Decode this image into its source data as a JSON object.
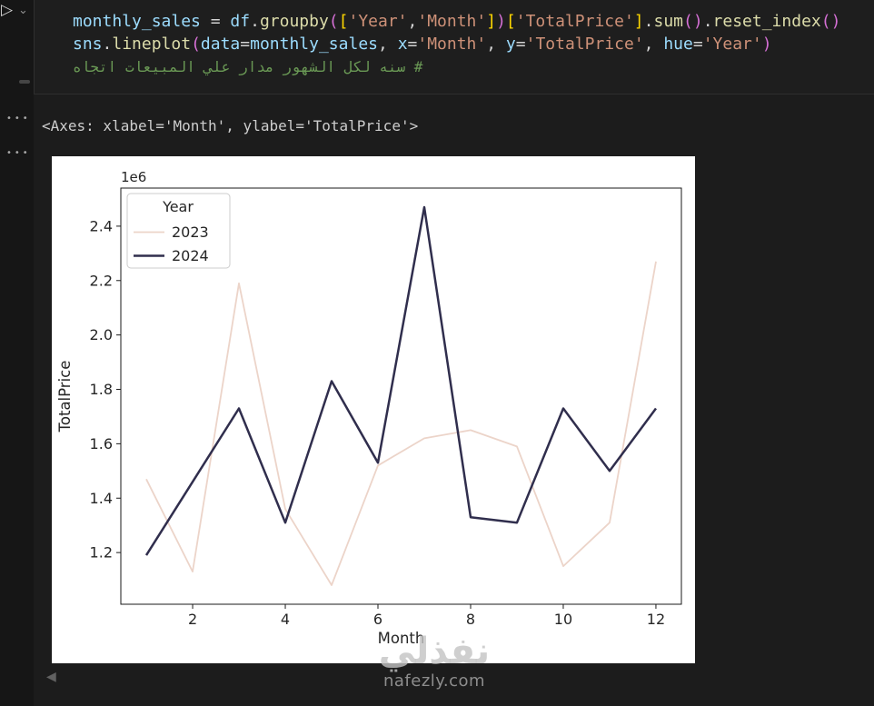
{
  "editor": {
    "run_icon": "▷",
    "chevron_icon": "⌄",
    "kebab_icon": "•••",
    "back_arrow_icon": "◀",
    "code_lines": [
      {
        "tokens": [
          [
            "v",
            "monthly_sales"
          ],
          [
            "o",
            " = "
          ],
          [
            "v",
            "df"
          ],
          [
            "o",
            "."
          ],
          [
            "f",
            "groupby"
          ],
          [
            "p",
            "("
          ],
          [
            "b",
            "["
          ],
          [
            "s",
            "'Year'"
          ],
          [
            "o",
            ","
          ],
          [
            "s",
            "'Month'"
          ],
          [
            "b",
            "]"
          ],
          [
            "p",
            ")"
          ],
          [
            "b",
            "["
          ],
          [
            "s",
            "'TotalPrice'"
          ],
          [
            "b",
            "]"
          ],
          [
            "o",
            "."
          ],
          [
            "f",
            "sum"
          ],
          [
            "p",
            "()"
          ],
          [
            "o",
            "."
          ],
          [
            "f",
            "reset_index"
          ],
          [
            "p",
            "()"
          ]
        ]
      },
      {
        "tokens": [
          [
            "v",
            "sns"
          ],
          [
            "o",
            "."
          ],
          [
            "f",
            "lineplot"
          ],
          [
            "p",
            "("
          ],
          [
            "v",
            "data"
          ],
          [
            "o",
            "="
          ],
          [
            "v",
            "monthly_sales"
          ],
          [
            "o",
            ", "
          ],
          [
            "v",
            "x"
          ],
          [
            "o",
            "="
          ],
          [
            "s",
            "'Month'"
          ],
          [
            "o",
            ", "
          ],
          [
            "v",
            "y"
          ],
          [
            "o",
            "="
          ],
          [
            "s",
            "'TotalPrice'"
          ],
          [
            "o",
            ", "
          ],
          [
            "v",
            "hue"
          ],
          [
            "o",
            "="
          ],
          [
            "s",
            "'Year'"
          ],
          [
            "p",
            ")"
          ]
        ]
      },
      {
        "tokens": [
          [
            "c",
            "اتجاه‎ المبيعات‎ علي‎ مدار‎ الشهور‎ لكل‎ سنه‎ #"
          ]
        ]
      }
    ]
  },
  "output": {
    "repr_text": "<Axes: xlabel='Month', ylabel='TotalPrice'>"
  },
  "chart_data": {
    "type": "line",
    "title": "",
    "xlabel": "Month",
    "ylabel": "TotalPrice",
    "offset_label": "1e6",
    "x": [
      1,
      2,
      3,
      4,
      5,
      6,
      7,
      8,
      9,
      10,
      11,
      12
    ],
    "series": [
      {
        "name": "2023",
        "color": "#ecd4c9",
        "width": 1.8,
        "values": [
          1.47,
          1.13,
          2.19,
          1.36,
          1.08,
          1.52,
          1.62,
          1.65,
          1.59,
          1.15,
          1.31,
          2.27
        ]
      },
      {
        "name": "2024",
        "color": "#302e4d",
        "width": 2.5,
        "values": [
          1.19,
          1.46,
          1.73,
          1.31,
          1.83,
          1.53,
          2.47,
          1.33,
          1.31,
          1.73,
          1.5,
          1.73
        ]
      }
    ],
    "xlim": [
      0.45,
      12.55
    ],
    "ylim": [
      1.01,
      2.54
    ],
    "xticks": [
      2,
      4,
      6,
      8,
      10,
      12
    ],
    "yticks": [
      1.2,
      1.4,
      1.6,
      1.8,
      2.0,
      2.2,
      2.4
    ],
    "grid": false,
    "legend": {
      "title": "Year",
      "position": "upper left"
    },
    "values_unit": "1e6"
  },
  "watermark": {
    "logo": "نفذلي",
    "site": "nafezly.com"
  },
  "colors": {
    "axis": "#1a1a1a",
    "tick_label": "#262626",
    "legend_edge": "#cccccc",
    "figure_bg": "#ffffff"
  }
}
